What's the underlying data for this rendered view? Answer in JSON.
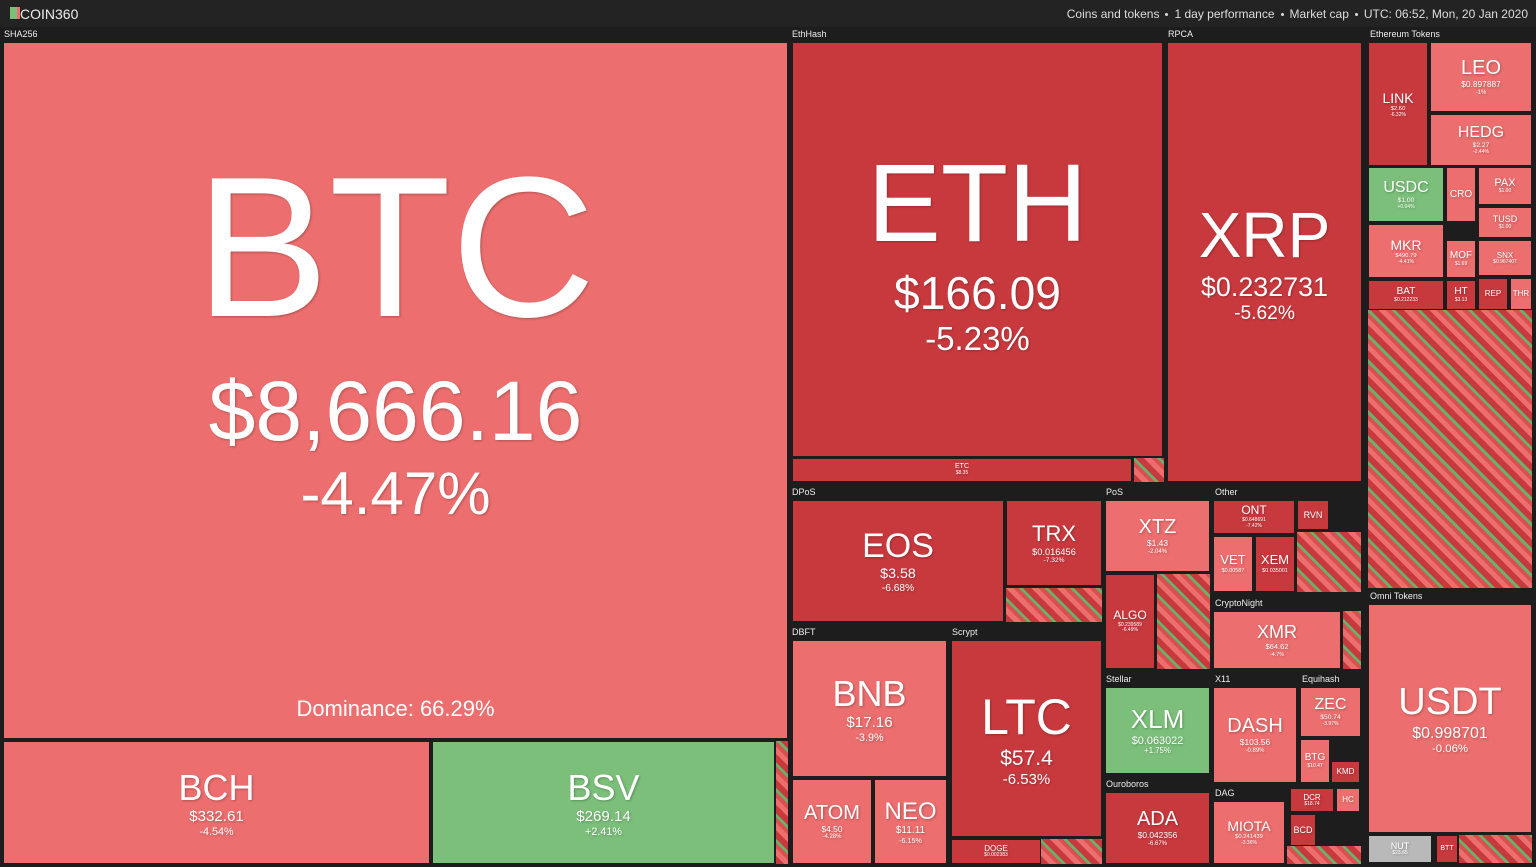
{
  "header": {
    "logo": "COIN360",
    "filters": [
      "Coins and tokens",
      "1 day performance",
      "Market cap"
    ],
    "time": "UTC: 06:52, Mon, 20 Jan 2020"
  },
  "groups": [
    {
      "label": "SHA256"
    },
    {
      "label": "EthHash"
    },
    {
      "label": "RPCA"
    },
    {
      "label": "Ethereum Tokens"
    },
    {
      "label": "Omni Tokens"
    },
    {
      "label": "DPoS"
    },
    {
      "label": "PoS"
    },
    {
      "label": "Other"
    },
    {
      "label": "CryptoNight"
    },
    {
      "label": "DBFT"
    },
    {
      "label": "Scrypt"
    },
    {
      "label": "Stellar"
    },
    {
      "label": "Ouroboros"
    },
    {
      "label": "X11"
    },
    {
      "label": "Equihash"
    },
    {
      "label": "DAG"
    }
  ],
  "btc_dominance": "Dominance: 66.29%",
  "tiles": [
    {
      "symbol": "BTC",
      "price": "$8,666.16",
      "change": "-4.47%"
    },
    {
      "symbol": "BCH",
      "price": "$332.61",
      "change": "-4.54%"
    },
    {
      "symbol": "BSV",
      "price": "$269.14",
      "change": "+2.41%"
    },
    {
      "symbol": "ETH",
      "price": "$166.09",
      "change": "-5.23%"
    },
    {
      "symbol": "ETC",
      "price": "$8.35"
    },
    {
      "symbol": "XRP",
      "price": "$0.232731",
      "change": "-5.62%"
    },
    {
      "symbol": "LEO",
      "price": "$0.897887",
      "change": "-1%"
    },
    {
      "symbol": "LINK",
      "price": "$2.60",
      "change": "-6.32%"
    },
    {
      "symbol": "HEDG",
      "price": "$2.27",
      "change": "-2.44%"
    },
    {
      "symbol": "USDC",
      "price": "$1.00",
      "change": "+0.04%"
    },
    {
      "symbol": "CRO"
    },
    {
      "symbol": "PAX",
      "price": "$1.00"
    },
    {
      "symbol": "TUSD",
      "price": "$1.00"
    },
    {
      "symbol": "MKR",
      "price": "$490.79",
      "change": "-4.41%"
    },
    {
      "symbol": "MOF",
      "price": "$1.69"
    },
    {
      "symbol": "SNX",
      "price": "$0.967407"
    },
    {
      "symbol": "BAT",
      "price": "$0.212233"
    },
    {
      "symbol": "HT",
      "price": "$3.13"
    },
    {
      "symbol": "REP"
    },
    {
      "symbol": "THR"
    },
    {
      "symbol": "USDT",
      "price": "$0.998701",
      "change": "-0.06%"
    },
    {
      "symbol": "NUT",
      "price": "$23.65"
    },
    {
      "symbol": "BTT"
    },
    {
      "symbol": "EOS",
      "price": "$3.58",
      "change": "-6.68%"
    },
    {
      "symbol": "TRX",
      "price": "$0.016456",
      "change": "-7.32%"
    },
    {
      "symbol": "XTZ",
      "price": "$1.43",
      "change": "-2.04%"
    },
    {
      "symbol": "ALGO",
      "price": "$0.239589",
      "change": "-6.49%"
    },
    {
      "symbol": "ONT",
      "price": "$0.648691",
      "change": "-7.42%"
    },
    {
      "symbol": "VET",
      "price": "$0.00587"
    },
    {
      "symbol": "XEM",
      "price": "$0.035001"
    },
    {
      "symbol": "RVN"
    },
    {
      "symbol": "XMR",
      "price": "$64.62",
      "change": "-4.7%"
    },
    {
      "symbol": "BNB",
      "price": "$17.16",
      "change": "-3.9%"
    },
    {
      "symbol": "ATOM",
      "price": "$4.50",
      "change": "-4.28%"
    },
    {
      "symbol": "NEO",
      "price": "$11.11",
      "change": "-6.15%"
    },
    {
      "symbol": "LTC",
      "price": "$57.4",
      "change": "-6.53%"
    },
    {
      "symbol": "DOGE",
      "price": "$0.002383"
    },
    {
      "symbol": "XLM",
      "price": "$0.063022",
      "change": "+1.75%"
    },
    {
      "symbol": "ADA",
      "price": "$0.042356",
      "change": "-6.67%"
    },
    {
      "symbol": "DASH",
      "price": "$103.56",
      "change": "-0.89%"
    },
    {
      "symbol": "ZEC",
      "price": "$50.74",
      "change": "-3.97%"
    },
    {
      "symbol": "BTG",
      "price": "$10.47"
    },
    {
      "symbol": "KMD"
    },
    {
      "symbol": "MIOTA",
      "price": "$0.241439",
      "change": "-3.36%"
    },
    {
      "symbol": "DCR",
      "price": "$18.74"
    },
    {
      "symbol": "BCD"
    },
    {
      "symbol": "HC"
    }
  ]
}
